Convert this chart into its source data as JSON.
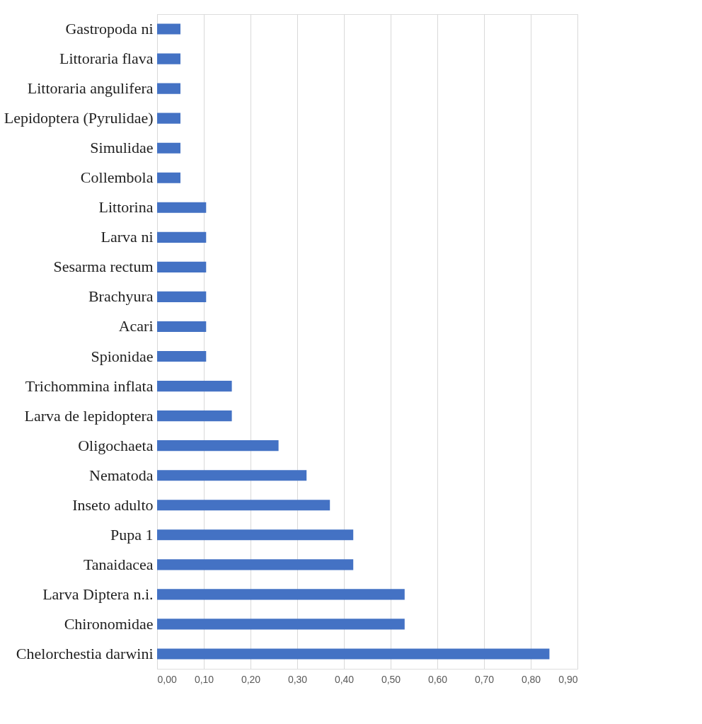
{
  "chart_data": {
    "type": "bar",
    "orientation": "horizontal",
    "categories": [
      "Gastropoda ni",
      "Littoraria flava",
      "Littoraria angulifera",
      "Lepidoptera (Pyrulidae)",
      "Simulidae",
      "Collembola",
      "Littorina",
      "Larva ni",
      "Sesarma rectum",
      "Brachyura",
      "Acari",
      "Spionidae",
      "Trichommina inflata",
      "Larva de lepidoptera",
      "Oligochaeta",
      "Nematoda",
      "Inseto adulto",
      "Pupa 1",
      "Tanaidacea",
      "Larva Diptera n.i.",
      "Chironomidae",
      "Chelorchestia darwini"
    ],
    "values": [
      0.05,
      0.05,
      0.05,
      0.05,
      0.05,
      0.05,
      0.105,
      0.105,
      0.105,
      0.105,
      0.105,
      0.105,
      0.16,
      0.16,
      0.26,
      0.32,
      0.37,
      0.42,
      0.42,
      0.53,
      0.53,
      0.84
    ],
    "color": "#4472c4",
    "xlim": [
      0,
      0.9
    ],
    "xticks": [
      {
        "value": 0,
        "label": "0,00"
      },
      {
        "value": 0.1,
        "label": "0,10"
      },
      {
        "value": 0.2,
        "label": "0,20"
      },
      {
        "value": 0.3,
        "label": "0,30"
      },
      {
        "value": 0.4,
        "label": "0,40"
      },
      {
        "value": 0.5,
        "label": "0,50"
      },
      {
        "value": 0.6,
        "label": "0,60"
      },
      {
        "value": 0.7,
        "label": "0,70"
      },
      {
        "value": 0.8,
        "label": "0,80"
      },
      {
        "value": 0.9,
        "label": "0,90"
      }
    ],
    "grid": "x"
  }
}
